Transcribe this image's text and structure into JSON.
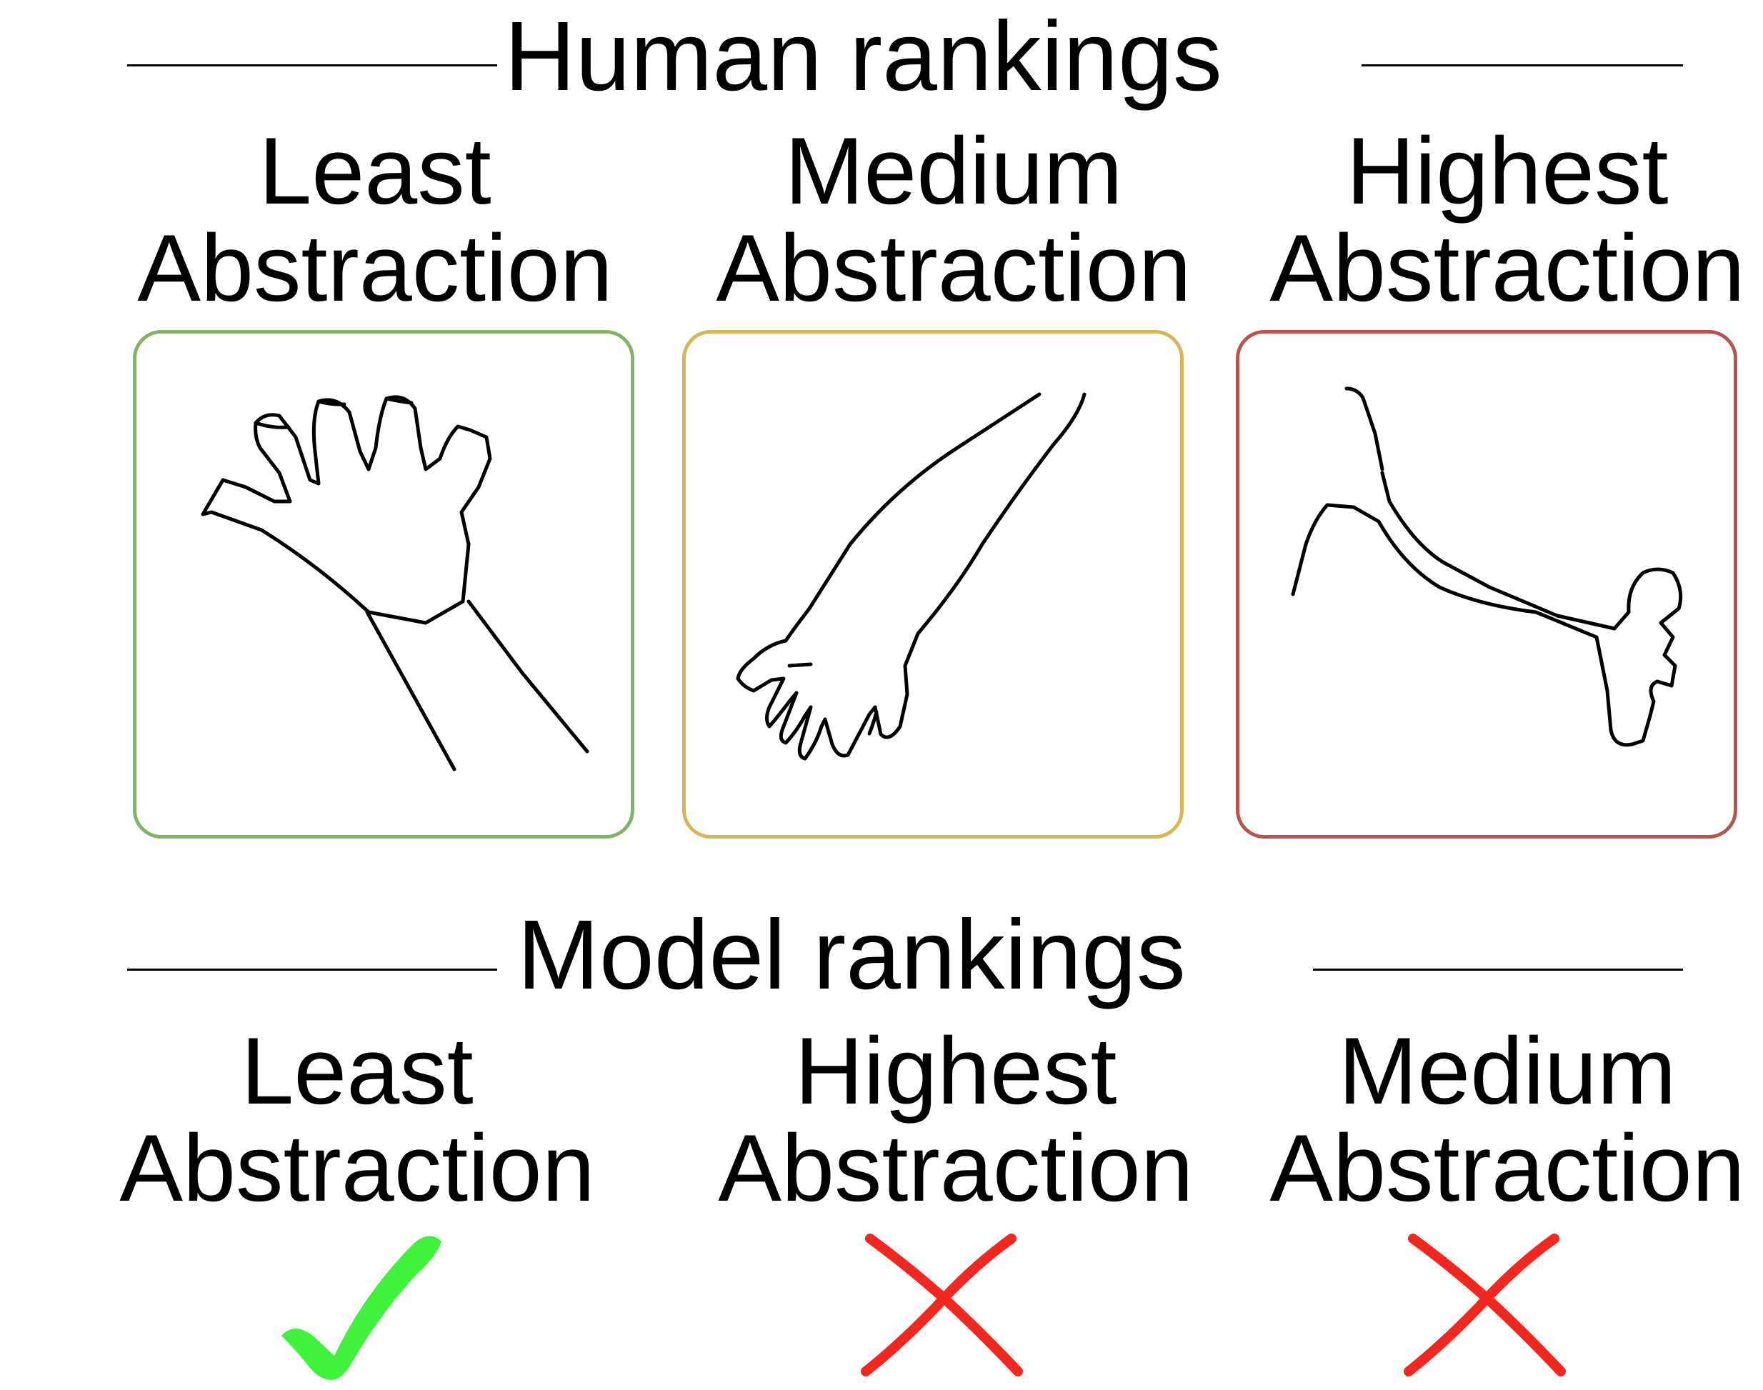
{
  "human": {
    "title": "Human rankings",
    "columns": [
      {
        "line1": "Least",
        "line2": "Abstraction",
        "border_color": "#82b366"
      },
      {
        "line1": "Medium",
        "line2": "Abstraction",
        "border_color": "#d6b656"
      },
      {
        "line1": "Highest",
        "line2": "Abstraction",
        "border_color": "#b85450"
      }
    ]
  },
  "model": {
    "title": "Model rankings",
    "columns": [
      {
        "line1": "Least",
        "line2": "Abstraction",
        "verdict": "correct",
        "icon": "check-icon",
        "color": "#40f23c"
      },
      {
        "line1": "Highest",
        "line2": "Abstraction",
        "verdict": "incorrect",
        "icon": "cross-icon",
        "color": "#f2271f"
      },
      {
        "line1": "Medium",
        "line2": "Abstraction",
        "verdict": "incorrect",
        "icon": "cross-icon",
        "color": "#f2271f"
      }
    ]
  }
}
